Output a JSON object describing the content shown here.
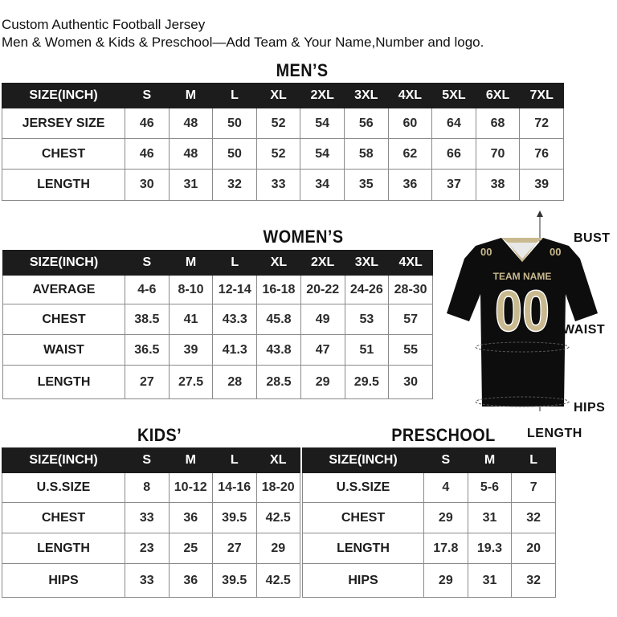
{
  "header": {
    "line1": "Custom Authentic Football Jersey",
    "line2": "Men & Women & Kids & Preschool—Add Team & Your Name,Number and logo."
  },
  "mens": {
    "title": "MEN’S",
    "columns": [
      "SIZE(INCH)",
      "S",
      "M",
      "L",
      "XL",
      "2XL",
      "3XL",
      "4XL",
      "5XL",
      "6XL",
      "7XL"
    ],
    "rows": [
      [
        "JERSEY SIZE",
        "46",
        "48",
        "50",
        "52",
        "54",
        "56",
        "60",
        "64",
        "68",
        "72"
      ],
      [
        "CHEST",
        "46",
        "48",
        "50",
        "52",
        "54",
        "58",
        "62",
        "66",
        "70",
        "76"
      ],
      [
        "LENGTH",
        "30",
        "31",
        "32",
        "33",
        "34",
        "35",
        "36",
        "37",
        "38",
        "39"
      ]
    ]
  },
  "womens": {
    "title": "WOMEN’S",
    "columns": [
      "SIZE(INCH)",
      "S",
      "M",
      "L",
      "XL",
      "2XL",
      "3XL",
      "4XL"
    ],
    "rows": [
      [
        "AVERAGE",
        "4-6",
        "8-10",
        "12-14",
        "16-18",
        "20-22",
        "24-26",
        "28-30"
      ],
      [
        "CHEST",
        "38.5",
        "41",
        "43.3",
        "45.8",
        "49",
        "53",
        "57"
      ],
      [
        "WAIST",
        "36.5",
        "39",
        "41.3",
        "43.8",
        "47",
        "51",
        "55"
      ],
      [
        "LENGTH",
        "27",
        "27.5",
        "28",
        "28.5",
        "29",
        "29.5",
        "30"
      ]
    ]
  },
  "kids": {
    "title": "KIDS’",
    "columns": [
      "SIZE(INCH)",
      "S",
      "M",
      "L",
      "XL"
    ],
    "rows": [
      [
        "U.S.SIZE",
        "8",
        "10-12",
        "14-16",
        "18-20"
      ],
      [
        "CHEST",
        "33",
        "36",
        "39.5",
        "42.5"
      ],
      [
        "LENGTH",
        "23",
        "25",
        "27",
        "29"
      ],
      [
        "HIPS",
        "33",
        "36",
        "39.5",
        "42.5"
      ]
    ]
  },
  "preschool": {
    "title": "PRESCHOOL",
    "columns": [
      "SIZE(INCH)",
      "S",
      "M",
      "L"
    ],
    "rows": [
      [
        "U.S.SIZE",
        "4",
        "5-6",
        "7"
      ],
      [
        "CHEST",
        "29",
        "31",
        "32"
      ],
      [
        "LENGTH",
        "17.8",
        "19.3",
        "20"
      ],
      [
        "HIPS",
        "29",
        "31",
        "32"
      ]
    ]
  },
  "jersey": {
    "team_name": "TEAM NAME",
    "number": "00",
    "body_color": "#0d0d0d",
    "trim_color": "#c9b98e",
    "labels": {
      "bust": "BUST",
      "waist": "WAIST",
      "hips": "HIPS",
      "length": "LENGTH"
    }
  }
}
